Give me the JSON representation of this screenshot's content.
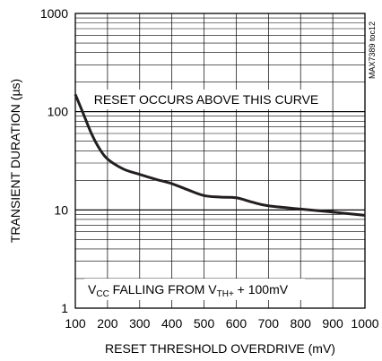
{
  "chart_data": {
    "type": "line",
    "xlabel": "RESET THRESHOLD OVERDRIVE (mV)",
    "ylabel": "TRANSIENT DURATION (µs)",
    "xlim": [
      100,
      1000
    ],
    "ylim": [
      1,
      1000
    ],
    "yscale": "log",
    "grid": true,
    "x_ticks": [
      "100",
      "200",
      "300",
      "400",
      "500",
      "600",
      "700",
      "800",
      "900",
      "1000"
    ],
    "y_ticks": [
      "1",
      "10",
      "100",
      "1000"
    ],
    "series": [
      {
        "x": [
          100,
          125,
          150,
          175,
          200,
          250,
          300,
          350,
          400,
          450,
          500,
          550,
          600,
          650,
          700,
          800,
          900,
          1000
        ],
        "y": [
          150,
          95,
          60,
          42,
          33,
          26,
          23,
          20.5,
          18.5,
          16,
          14,
          13.5,
          13.3,
          12,
          11,
          10.2,
          9.5,
          8.8
        ]
      }
    ],
    "annotations": {
      "upper": "RESET OCCURS ABOVE THIS CURVE",
      "lower_parts": [
        "V",
        "CC",
        " FALLING FROM V",
        "TH+",
        " + 100mV"
      ],
      "figure_id": "MAX7389 toc12"
    }
  },
  "colors": {
    "curve": "#231f20",
    "grid": "#000000",
    "text": "#000000"
  }
}
